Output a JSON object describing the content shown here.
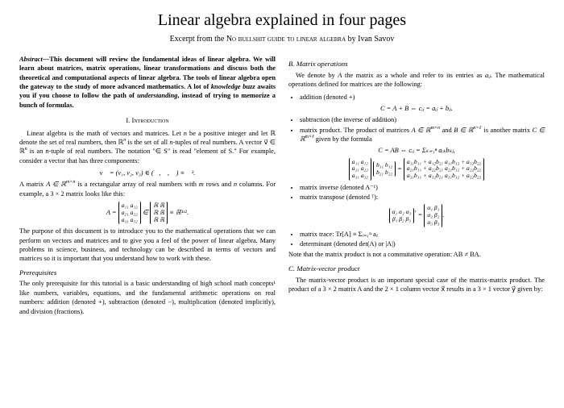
{
  "title": "Linear algebra explained in four pages",
  "subtitle_prefix": "Excerpt from the ",
  "subtitle_book": "No bullshit guide to linear algebra",
  "subtitle_author": " by Ivan Savov",
  "abstract_lead": "Abstract",
  "abstract_body": "—This document will review the fundamental ideas of linear algebra. We will learn about matrices, matrix operations, linear transformations and discuss both the theoretical and computational aspects of linear algebra. The tools of linear algebra open the gateway to the study of more advanced mathematics. A lot of ",
  "abstract_em1": "knowledge buzz",
  "abstract_body2": " awaits you if you choose to follow the path of ",
  "abstract_em2": "understanding",
  "abstract_body3": ", instead of trying to memorize a bunch of formulas.",
  "sec1_heading": "I.  Introduction",
  "intro_p1a": "Linear algebra is the math of vectors and matrices. Let ",
  "intro_p1_n": "n",
  "intro_p1b": " be a positive integer and let ℝ denote the set of real numbers, then ℝ",
  "intro_p1c": " is the set of all ",
  "intro_p1d": "-tuples of real numbers. A vector v⃗ ∈ ℝ",
  "intro_p1e": " is an ",
  "intro_p1f": "-tuple of real numbers. The notation \"∈ S\" is read \"element of S.\" For example, consider a vector that has three components:",
  "eq1": "v⃗ = (v₁, v₂, v₃)   ∈   (ℝ, ℝ, ℝ) ≡ ℝ³.",
  "intro_p2a": "A matrix ",
  "intro_p2b": "A ∈ ℝ",
  "intro_p2_mn": "m×n",
  "intro_p2c": " is a rectangular array of real numbers with ",
  "intro_p2_m": "m",
  "intro_p2d": " rows and ",
  "intro_p2e": " columns. For example, a 3 × 2 matrix looks like this:",
  "matA_r1": "a₁₁   a₁₂",
  "matA_r2": "a₂₁   a₂₂",
  "matA_r3": "a₃₁   a₃₂",
  "matR_r1": "ℝ   ℝ",
  "matR_r2": "ℝ   ℝ",
  "matR_r3": "ℝ   ℝ",
  "eq2_tail": " ≡ ℝ³ˣ².",
  "eq2_A": "A = ",
  "eq2_in": "   ∈   ",
  "intro_p3": "The purpose of this document is to introduce you to the mathematical operations that we can perform on vectors and matrices and to give you a feel of the power of linear algebra. Many problems in science, business, and technology can be described in terms of vectors and matrices so it is important that you understand how to work with these.",
  "prereq_heading": "Prerequisites",
  "prereq_p": "The only prerequisite for this tutorial is a basic understanding of high school math concepts¹ like numbers, variables, equations, and the fundamental arithmetic operations on real numbers: addition (denoted +), subtraction (denoted −), multiplication (denoted implicitly), and division (fractions).",
  "secB_heading": "B. Matrix operations",
  "secB_p1a": "We denote by ",
  "secB_p1A": "A",
  "secB_p1b": " the matrix as a whole and refer to its entries as ",
  "secB_p1_aij": "aᵢⱼ",
  "secB_p1c": ". The mathematical operations defined for matrices are the following:",
  "b_item1": "addition (denoted +)",
  "eq3": "C = A + B        ⇔        cᵢⱼ = aᵢⱼ + bᵢⱼ.",
  "b_item2": "subtraction (the inverse of addition)",
  "b_item3a": "matrix product. The product of matrices ",
  "b_item3_A": "A ∈ ℝ",
  "b_item3_mn": "m×n",
  "b_item3b": " and ",
  "b_item3_B": "B ∈ ℝ",
  "b_item3_nl": "n×ℓ",
  "b_item3c": " is another matrix ",
  "b_item3_C": "C ∈ ℝ",
  "b_item3_ml": "m×ℓ",
  "b_item3d": " given by the formula",
  "eq4": "C = AB       ⇔       cᵢⱼ = Σₖ₌₁ⁿ aᵢₖbₖⱼ,",
  "mat3a_r1": "a₁₁  a₁₂",
  "mat3a_r2": "a₂₁  a₂₂",
  "mat3a_r3": "a₃₁  a₃₂",
  "mat2b_r1": "b₁₁  b₁₂",
  "mat2b_r2": "b₂₁  b₂₂",
  "matres_r1": "a₁₁b₁₁ + a₁₂b₂₁   a₁₁b₁₂ + a₁₂b₂₂",
  "matres_r2": "a₂₁b₁₁ + a₂₂b₂₁   a₂₁b₁₂ + a₂₂b₂₂",
  "matres_r3": "a₃₁b₁₁ + a₃₂b₂₁   a₃₁b₁₂ + a₃₂b₂₂",
  "b_item4": "matrix inverse (denoted A⁻¹)",
  "b_item5": "matrix transpose (denoted ᵀ):",
  "matTa_r1": "α₁  α₂  α₃",
  "matTa_r2": "β₁  β₂  β₃",
  "matTb_r1": "α₁  β₁",
  "matTb_r2": "α₂  β₂",
  "matTb_r3": "α₃  β₃",
  "eqT_sup": "ᵀ",
  "eqT_eq": "   =   ",
  "eqT_tail": ".",
  "b_item6": "matrix trace: Tr[A] ≡ Σᵢ₌₁ⁿ aᵢᵢ",
  "b_item7": "determinant (denoted det(A) or |A|)",
  "secB_note": "Note that the matrix product is not a commutative operation: AB ≠ BA.",
  "secC_heading": "C. Matrix-vector product",
  "secC_p": "The matrix-vector product is an important special case of the matrix-matrix product. The product of a 3 × 2 matrix A and the 2 × 1 column vector x⃗ results in a 3 × 1 vector y⃗ given by:"
}
